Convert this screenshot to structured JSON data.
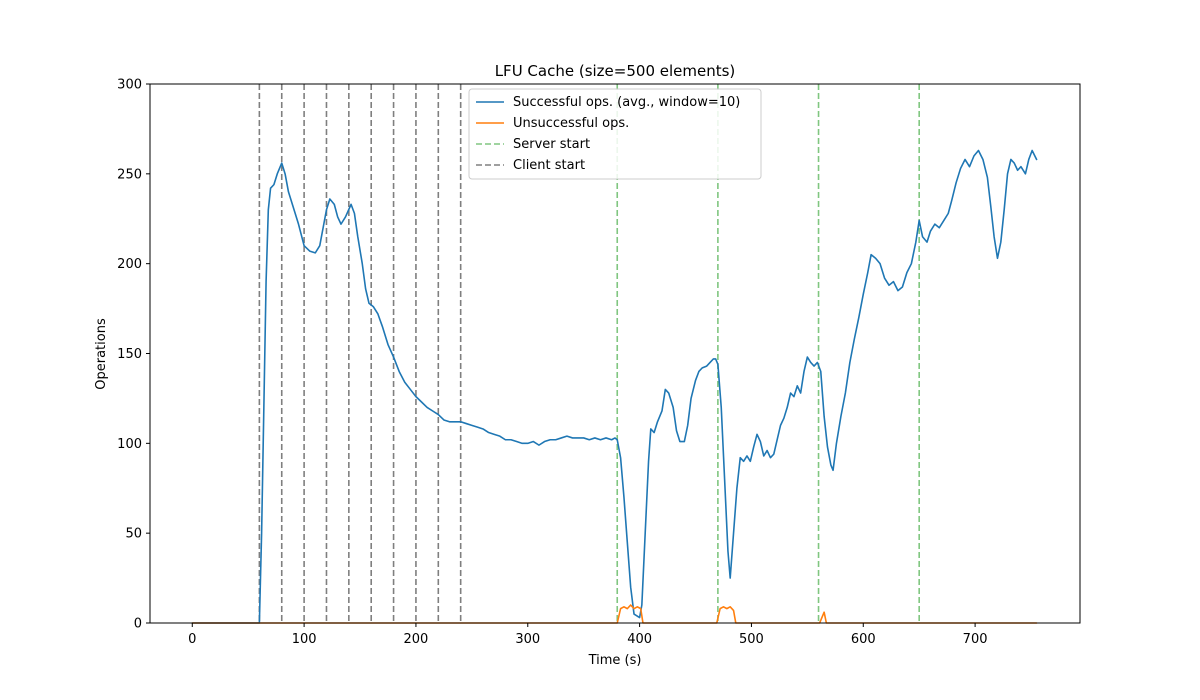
{
  "chart_data": {
    "type": "line",
    "title": "LFU Cache (size=500 elements)",
    "xlabel": "Time (s)",
    "ylabel": "Operations",
    "xlim": [
      -37.8,
      793.8
    ],
    "ylim": [
      0,
      300
    ],
    "xticks": [
      0,
      100,
      200,
      300,
      400,
      500,
      600,
      700
    ],
    "yticks": [
      0,
      50,
      100,
      150,
      200,
      250,
      300
    ],
    "grid": false,
    "legend_position": "top-center",
    "series": [
      {
        "name": "Successful ops. (avg., window=10)",
        "color": "#1f77b4",
        "points": [
          [
            0,
            0
          ],
          [
            55,
            0
          ],
          [
            60,
            0
          ],
          [
            62,
            50
          ],
          [
            64,
            120
          ],
          [
            66,
            190
          ],
          [
            68,
            230
          ],
          [
            70,
            242
          ],
          [
            73,
            244
          ],
          [
            76,
            250
          ],
          [
            80,
            256
          ],
          [
            83,
            250
          ],
          [
            86,
            240
          ],
          [
            90,
            232
          ],
          [
            95,
            222
          ],
          [
            100,
            210
          ],
          [
            105,
            207
          ],
          [
            110,
            206
          ],
          [
            114,
            210
          ],
          [
            117,
            220
          ],
          [
            120,
            230
          ],
          [
            123,
            236
          ],
          [
            127,
            233
          ],
          [
            130,
            226
          ],
          [
            133,
            222
          ],
          [
            137,
            226
          ],
          [
            142,
            233
          ],
          [
            145,
            228
          ],
          [
            148,
            215
          ],
          [
            152,
            200
          ],
          [
            155,
            186
          ],
          [
            158,
            178
          ],
          [
            162,
            176
          ],
          [
            166,
            172
          ],
          [
            170,
            165
          ],
          [
            175,
            155
          ],
          [
            180,
            148
          ],
          [
            185,
            140
          ],
          [
            190,
            134
          ],
          [
            195,
            130
          ],
          [
            200,
            126
          ],
          [
            205,
            123
          ],
          [
            210,
            120
          ],
          [
            215,
            118
          ],
          [
            220,
            116
          ],
          [
            225,
            113
          ],
          [
            230,
            112
          ],
          [
            235,
            112
          ],
          [
            240,
            112
          ],
          [
            245,
            111
          ],
          [
            250,
            110
          ],
          [
            255,
            109
          ],
          [
            260,
            108
          ],
          [
            265,
            106
          ],
          [
            270,
            105
          ],
          [
            275,
            104
          ],
          [
            280,
            102
          ],
          [
            285,
            102
          ],
          [
            290,
            101
          ],
          [
            295,
            100
          ],
          [
            300,
            100
          ],
          [
            305,
            101
          ],
          [
            310,
            99
          ],
          [
            315,
            101
          ],
          [
            320,
            102
          ],
          [
            325,
            102
          ],
          [
            330,
            103
          ],
          [
            335,
            104
          ],
          [
            340,
            103
          ],
          [
            345,
            103
          ],
          [
            350,
            103
          ],
          [
            355,
            102
          ],
          [
            360,
            103
          ],
          [
            365,
            102
          ],
          [
            370,
            103
          ],
          [
            375,
            102
          ],
          [
            378,
            103
          ],
          [
            380,
            102
          ],
          [
            383,
            92
          ],
          [
            386,
            70
          ],
          [
            389,
            45
          ],
          [
            392,
            20
          ],
          [
            395,
            5
          ],
          [
            400,
            3
          ],
          [
            402,
            10
          ],
          [
            405,
            50
          ],
          [
            408,
            90
          ],
          [
            410,
            108
          ],
          [
            413,
            106
          ],
          [
            416,
            112
          ],
          [
            420,
            118
          ],
          [
            423,
            130
          ],
          [
            426,
            128
          ],
          [
            430,
            120
          ],
          [
            433,
            107
          ],
          [
            436,
            101
          ],
          [
            440,
            101
          ],
          [
            443,
            110
          ],
          [
            446,
            125
          ],
          [
            450,
            135
          ],
          [
            453,
            140
          ],
          [
            456,
            142
          ],
          [
            460,
            143
          ],
          [
            463,
            145
          ],
          [
            466,
            147
          ],
          [
            468,
            147
          ],
          [
            470,
            144
          ],
          [
            473,
            120
          ],
          [
            476,
            80
          ],
          [
            479,
            40
          ],
          [
            481,
            25
          ],
          [
            484,
            50
          ],
          [
            487,
            75
          ],
          [
            490,
            92
          ],
          [
            493,
            90
          ],
          [
            496,
            93
          ],
          [
            499,
            90
          ],
          [
            502,
            98
          ],
          [
            505,
            105
          ],
          [
            508,
            101
          ],
          [
            511,
            93
          ],
          [
            514,
            96
          ],
          [
            517,
            92
          ],
          [
            520,
            94
          ],
          [
            523,
            102
          ],
          [
            526,
            110
          ],
          [
            529,
            114
          ],
          [
            532,
            120
          ],
          [
            535,
            128
          ],
          [
            538,
            126
          ],
          [
            541,
            132
          ],
          [
            544,
            128
          ],
          [
            547,
            140
          ],
          [
            550,
            148
          ],
          [
            553,
            145
          ],
          [
            556,
            143
          ],
          [
            559,
            145
          ],
          [
            562,
            140
          ],
          [
            565,
            115
          ],
          [
            568,
            98
          ],
          [
            571,
            88
          ],
          [
            573,
            85
          ],
          [
            576,
            100
          ],
          [
            580,
            115
          ],
          [
            584,
            128
          ],
          [
            588,
            145
          ],
          [
            592,
            158
          ],
          [
            596,
            170
          ],
          [
            600,
            183
          ],
          [
            604,
            195
          ],
          [
            607,
            205
          ],
          [
            611,
            203
          ],
          [
            615,
            200
          ],
          [
            619,
            192
          ],
          [
            623,
            188
          ],
          [
            627,
            190
          ],
          [
            631,
            185
          ],
          [
            635,
            187
          ],
          [
            639,
            195
          ],
          [
            643,
            200
          ],
          [
            647,
            212
          ],
          [
            650,
            224
          ],
          [
            653,
            215
          ],
          [
            657,
            212
          ],
          [
            660,
            218
          ],
          [
            664,
            222
          ],
          [
            668,
            220
          ],
          [
            672,
            224
          ],
          [
            676,
            228
          ],
          [
            679,
            235
          ],
          [
            683,
            245
          ],
          [
            687,
            253
          ],
          [
            691,
            258
          ],
          [
            695,
            254
          ],
          [
            699,
            260
          ],
          [
            703,
            263
          ],
          [
            707,
            258
          ],
          [
            711,
            248
          ],
          [
            714,
            232
          ],
          [
            717,
            215
          ],
          [
            720,
            203
          ],
          [
            723,
            212
          ],
          [
            726,
            230
          ],
          [
            729,
            250
          ],
          [
            732,
            258
          ],
          [
            735,
            256
          ],
          [
            738,
            252
          ],
          [
            741,
            254
          ],
          [
            745,
            250
          ],
          [
            748,
            258
          ],
          [
            751,
            263
          ],
          [
            755,
            258
          ]
        ]
      },
      {
        "name": "Unsuccessful ops.",
        "color": "#ff7f0e",
        "points": [
          [
            0,
            0
          ],
          [
            380,
            0
          ],
          [
            383,
            8
          ],
          [
            386,
            9
          ],
          [
            389,
            8
          ],
          [
            392,
            10
          ],
          [
            395,
            8
          ],
          [
            398,
            9
          ],
          [
            401,
            8
          ],
          [
            403,
            0
          ],
          [
            469,
            0
          ],
          [
            472,
            8
          ],
          [
            475,
            9
          ],
          [
            478,
            8
          ],
          [
            481,
            9
          ],
          [
            484,
            7
          ],
          [
            486,
            0
          ],
          [
            561,
            0
          ],
          [
            563,
            3
          ],
          [
            565,
            6
          ],
          [
            567,
            0
          ],
          [
            755,
            0
          ]
        ]
      }
    ],
    "vlines": [
      {
        "name": "Server start",
        "color": "#2ca02c",
        "dash": "dashed",
        "x": [
          380,
          470,
          560,
          650
        ]
      },
      {
        "name": "Client start",
        "color": "#000000",
        "dash": "dashed",
        "x": [
          60,
          80,
          100,
          120,
          140,
          160,
          180,
          200,
          220,
          240
        ]
      }
    ]
  }
}
